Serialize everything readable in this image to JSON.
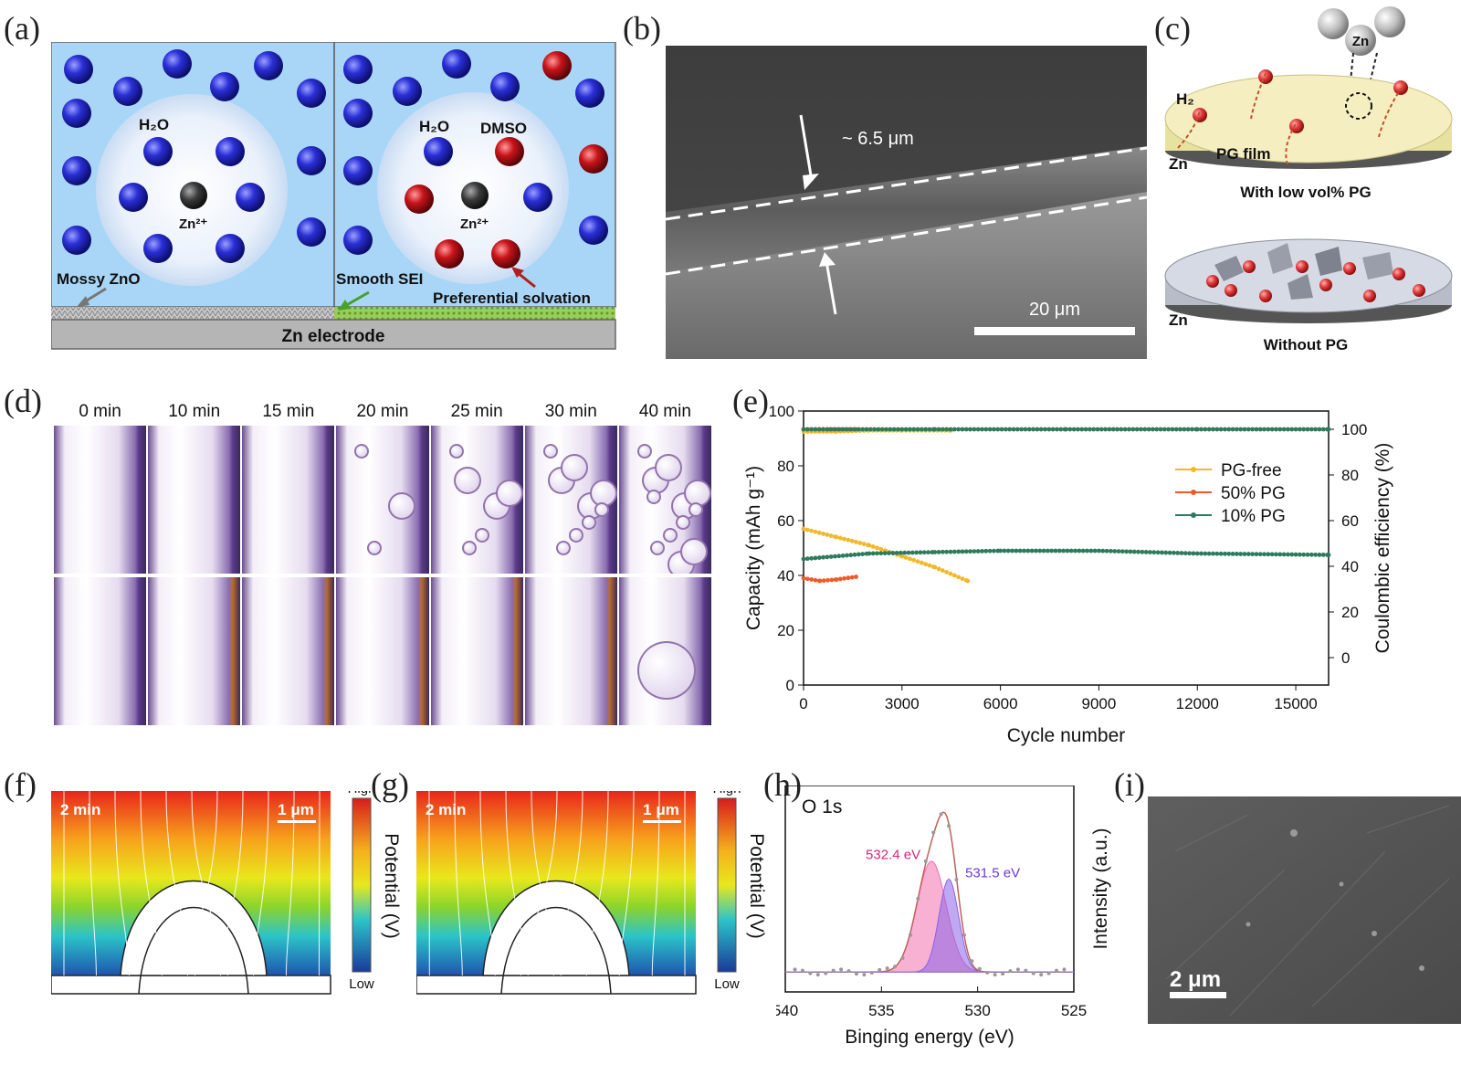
{
  "panels": {
    "a": {
      "label": "(a)",
      "h2o_left": "H₂O",
      "zn_left": "Zn²⁺",
      "h2o_right": "H₂O",
      "dmso": "DMSO",
      "zn_right": "Zn²⁺",
      "mossy": "Mossy ZnO",
      "smooth": "Smooth SEI",
      "preferential": "Preferential solvation",
      "electrode": "Zn electrode"
    },
    "b": {
      "label": "(b)",
      "thickness": "~ 6.5 μm",
      "scale": "20 μm"
    },
    "c": {
      "label": "(c)",
      "zn_atom": "Zn",
      "h2": "H₂",
      "pg_film": "PG film",
      "zn_top": "Zn",
      "caption_top": "With low vol% PG",
      "zn_bottom": "Zn",
      "caption_bottom": "Without PG"
    },
    "d": {
      "label": "(d)",
      "times": [
        "0 min",
        "10 min",
        "15 min",
        "20 min",
        "25 min",
        "30 min",
        "40 min"
      ]
    },
    "e": {
      "label": "(e)"
    },
    "f": {
      "label": "(f)",
      "time": "2 min",
      "scale": "1 μm",
      "high": "High",
      "low": "Low",
      "potential": "Potential (V)"
    },
    "g": {
      "label": "(g)",
      "time": "2 min",
      "scale": "1 μm",
      "high": "High",
      "low": "Low",
      "potential": "Potential (V)"
    },
    "h": {
      "label": "(h)"
    },
    "i": {
      "label": "(i)",
      "scale": "2 μm"
    }
  },
  "colors": {
    "water_ball": "#2a2fd6",
    "dmso_ball": "#c8141a",
    "solution_bg": "#a9d6f7",
    "pg_free": "#f2b82c",
    "pg50": "#ef5a2a",
    "pg10": "#2d7a5c",
    "peak1": "#f26fae",
    "peak2": "#8a63e8"
  },
  "chart_data": [
    {
      "id": "e",
      "type": "scatter",
      "xlabel": "Cycle number",
      "ylabel": "Capacity (mAh g⁻¹)",
      "y2label": "Coulombic efficiency (%)",
      "xlim": [
        0,
        16000
      ],
      "ylim": [
        0,
        100
      ],
      "y2lim": [
        0,
        100
      ],
      "x_ticks": [
        "0",
        "3000",
        "6000",
        "9000",
        "12000",
        "15000"
      ],
      "y_ticks": [
        "0",
        "20",
        "40",
        "60",
        "80",
        "100"
      ],
      "y2_ticks": [
        "0",
        "20",
        "40",
        "60",
        "80",
        "100"
      ],
      "legend_position": "right",
      "series": [
        {
          "name": "PG-free",
          "capacity": [
            [
              0,
              57
            ],
            [
              1000,
              54
            ],
            [
              2000,
              51
            ],
            [
              2500,
              49
            ],
            [
              3000,
              47
            ],
            [
              4000,
              43
            ],
            [
              5000,
              38
            ]
          ],
          "ce": [
            [
              0,
              99
            ],
            [
              1000,
              99
            ],
            [
              2000,
              99.5
            ],
            [
              3000,
              99.5
            ],
            [
              4500,
              99.5
            ]
          ]
        },
        {
          "name": "50% PG",
          "capacity": [
            [
              0,
              39
            ],
            [
              500,
              38
            ],
            [
              1000,
              38.5
            ],
            [
              1600,
              39.5
            ]
          ],
          "ce": [
            [
              0,
              100
            ],
            [
              800,
              100
            ],
            [
              1600,
              100
            ]
          ]
        },
        {
          "name": "10% PG",
          "capacity": [
            [
              0,
              46
            ],
            [
              2000,
              48
            ],
            [
              4000,
              48.5
            ],
            [
              6000,
              49
            ],
            [
              9000,
              49
            ],
            [
              12000,
              48
            ],
            [
              16000,
              47.5
            ]
          ],
          "ce": [
            [
              0,
              100
            ],
            [
              4000,
              100
            ],
            [
              8000,
              100
            ],
            [
              12000,
              100
            ],
            [
              16000,
              100
            ]
          ]
        }
      ]
    },
    {
      "id": "h",
      "type": "line",
      "title": "O 1s",
      "xlabel": "Binging energy (eV)",
      "ylabel": "Intensity (a.u.)",
      "xlim": [
        540,
        525
      ],
      "x_ticks": [
        "540",
        "535",
        "530",
        "525"
      ],
      "peaks": [
        {
          "name": "532.4 eV",
          "center": 532.4,
          "height": 0.62,
          "fwhm": 1.8
        },
        {
          "name": "531.5 eV",
          "center": 531.5,
          "height": 0.52,
          "fwhm": 1.2
        }
      ]
    }
  ]
}
